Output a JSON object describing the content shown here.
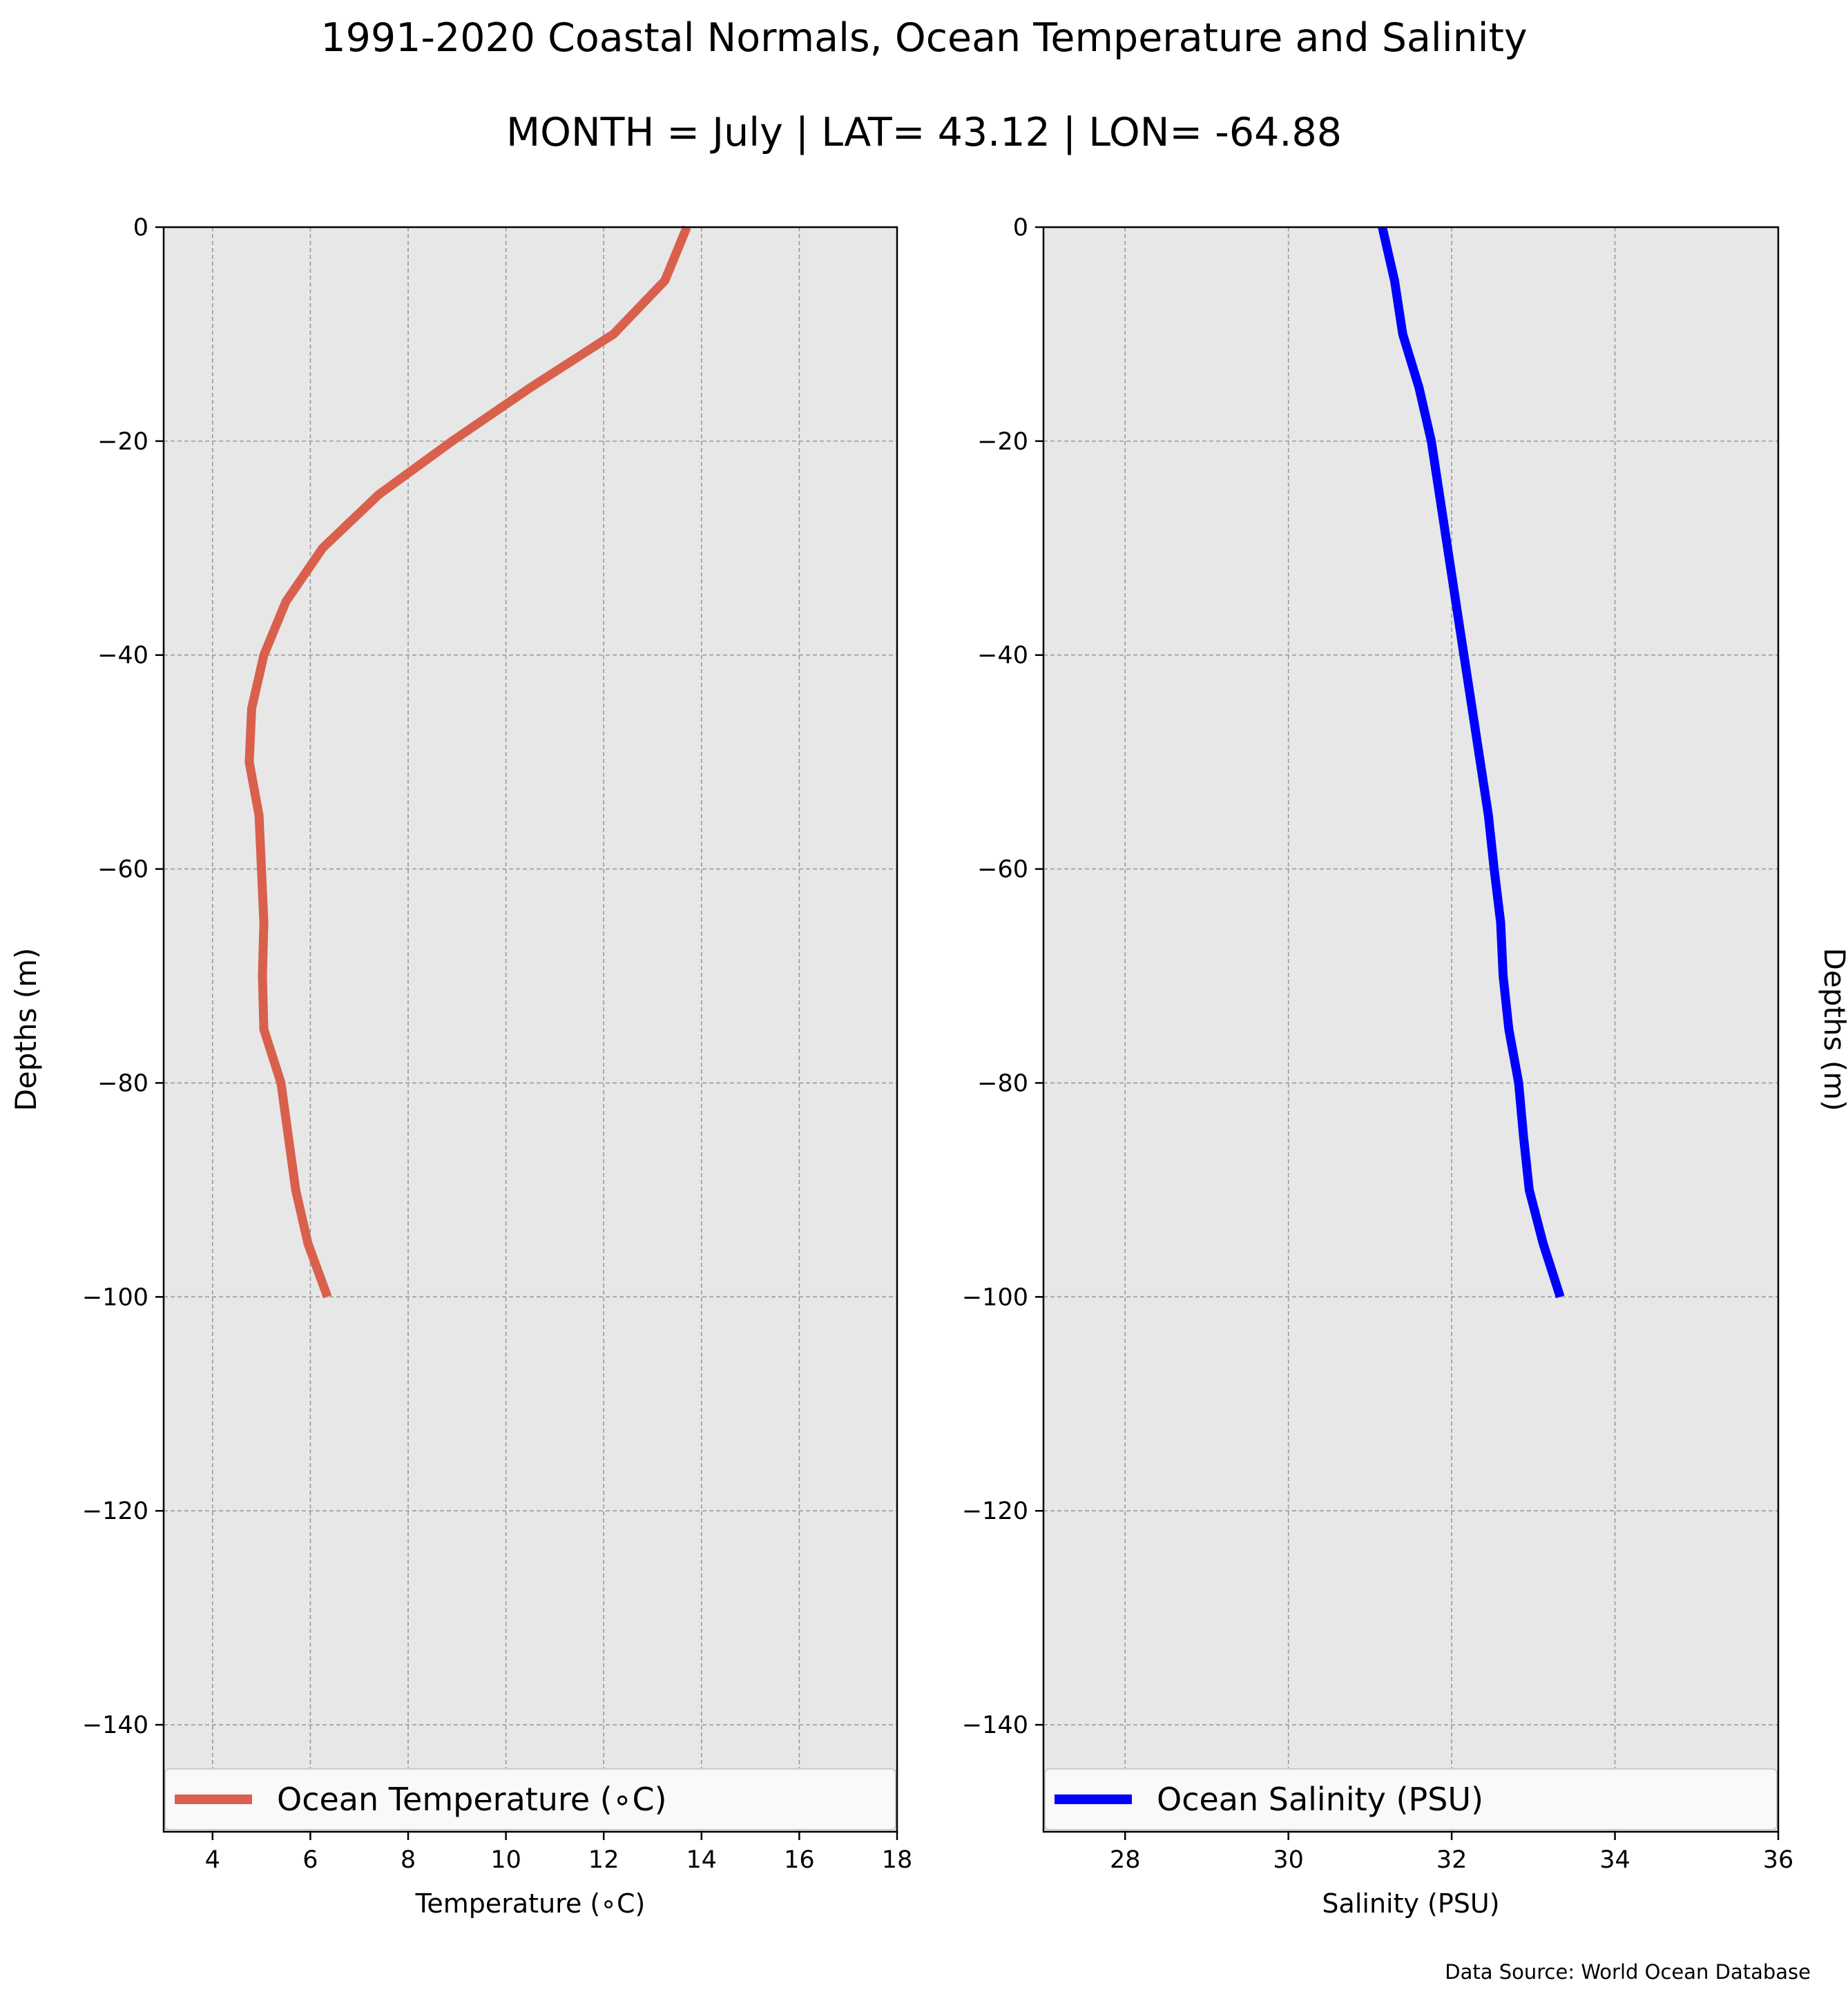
{
  "title": "1991-2020 Coastal Normals, Ocean Temperature and Salinity",
  "subtitle": "MONTH = July | LAT= 43.12 | LON= -64.88",
  "source": "Data Source: World Ocean Database",
  "chart_data": [
    {
      "type": "line",
      "xlabel": "Temperature (∘C)",
      "ylabel": "Depths (m)",
      "xlim": [
        3,
        18
      ],
      "ylim": [
        -150,
        0
      ],
      "xticks": [
        4,
        6,
        8,
        10,
        12,
        14,
        16,
        18
      ],
      "yticks": [
        0,
        -20,
        -40,
        -60,
        -80,
        -100,
        -120,
        -140
      ],
      "grid": true,
      "legend_position": "lower-center",
      "series": [
        {
          "name": "Ocean Temperature (∘C)",
          "color": "#d9604c",
          "x": [
            13.7,
            13.25,
            12.2,
            10.5,
            8.9,
            7.4,
            6.25,
            5.5,
            5.05,
            4.8,
            4.75,
            4.95,
            5.0,
            5.05,
            5.02,
            5.05,
            5.4,
            5.55,
            5.7,
            5.95,
            6.35
          ],
          "y": [
            0,
            -5,
            -10,
            -15,
            -20,
            -25,
            -30,
            -35,
            -40,
            -45,
            -50,
            -55,
            -60,
            -65,
            -70,
            -75,
            -80,
            -85,
            -90,
            -95,
            -100
          ]
        }
      ]
    },
    {
      "type": "line",
      "xlabel": "Salinity (PSU)",
      "ylabel": "Depths (m)",
      "xlim": [
        27,
        36
      ],
      "ylim": [
        -150,
        0
      ],
      "xticks": [
        28,
        30,
        32,
        34,
        36
      ],
      "yticks": [
        0,
        -20,
        -40,
        -60,
        -80,
        -100,
        -120,
        -140
      ],
      "grid": true,
      "legend_position": "lower-center",
      "series": [
        {
          "name": "Ocean Salinity (PSU)",
          "color": "#0000ff",
          "x": [
            31.15,
            31.3,
            31.4,
            31.6,
            31.75,
            31.85,
            31.95,
            32.05,
            32.15,
            32.25,
            32.35,
            32.45,
            32.52,
            32.6,
            32.63,
            32.7,
            32.82,
            32.88,
            32.95,
            33.12,
            33.33
          ],
          "y": [
            0,
            -5,
            -10,
            -15,
            -20,
            -25,
            -30,
            -35,
            -40,
            -45,
            -50,
            -55,
            -60,
            -65,
            -70,
            -75,
            -80,
            -85,
            -90,
            -95,
            -100
          ]
        }
      ]
    }
  ]
}
